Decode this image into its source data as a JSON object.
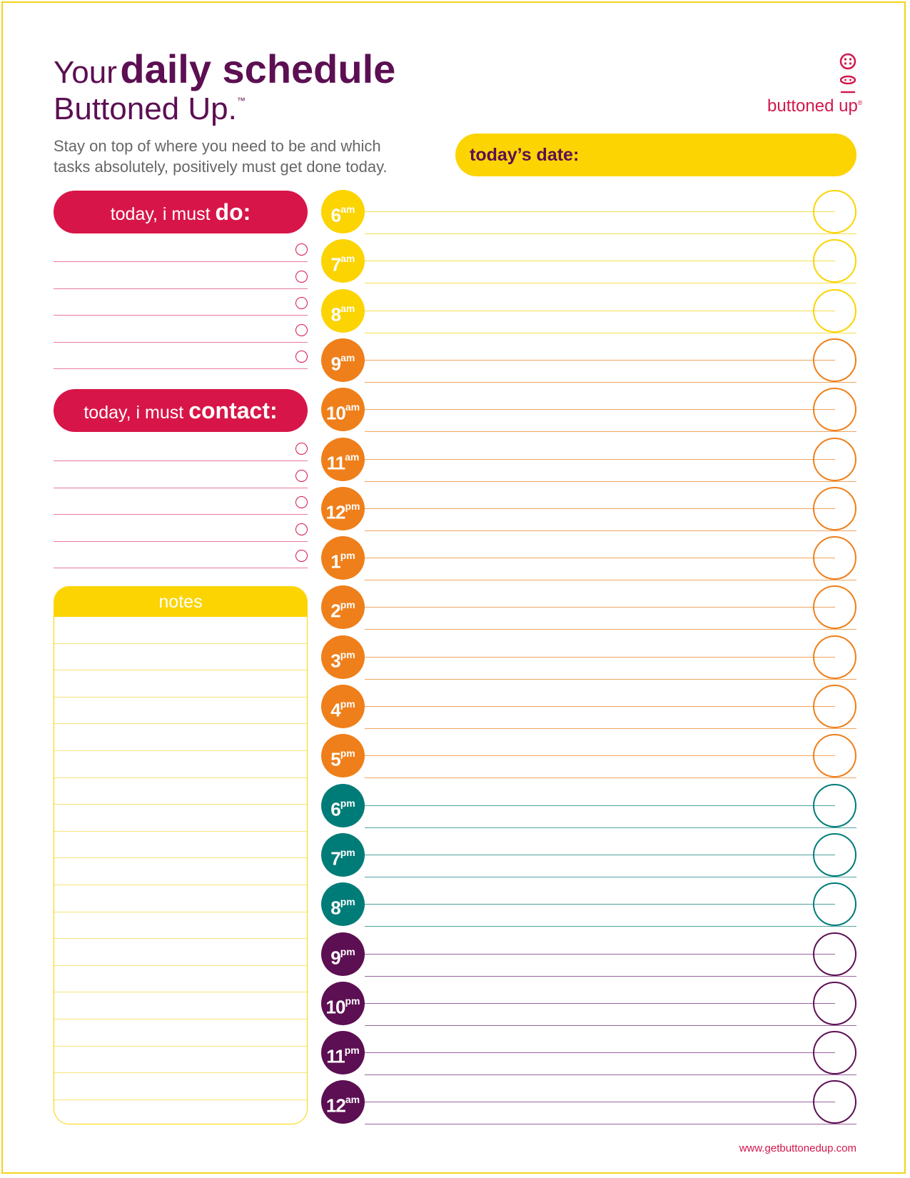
{
  "header": {
    "title_prefix": "Your",
    "title_main": "daily schedule",
    "subtitle": "Buttoned Up.",
    "trademark": "™",
    "description": "Stay on top of where you need to be and which tasks absolutely, positively must get done today.",
    "date_label": "today’s date:"
  },
  "brand": {
    "name": "buttoned up",
    "registered": "®",
    "url": "www.getbuttonedup.com",
    "color": "#d2184c"
  },
  "sections": {
    "do_prefix": "today, i must",
    "do_label": "do:",
    "contact_prefix": "today, i must",
    "contact_label": "contact:",
    "notes_label": "notes"
  },
  "colors": {
    "yellow": "#fbd402",
    "orange": "#ef7f1a",
    "teal": "#007c78",
    "purple": "#5c0f52",
    "red": "#d81548"
  },
  "hours": [
    {
      "num": "6",
      "suffix": "am",
      "color": "#fbd402",
      "line": "#f5de50"
    },
    {
      "num": "7",
      "suffix": "am",
      "color": "#fbd402",
      "line": "#f5de50"
    },
    {
      "num": "8",
      "suffix": "am",
      "color": "#fbd402",
      "line": "#f5de50"
    },
    {
      "num": "9",
      "suffix": "am",
      "color": "#ef7f1a",
      "line": "#f0a560"
    },
    {
      "num": "10",
      "suffix": "am",
      "color": "#ef7f1a",
      "line": "#f0a560"
    },
    {
      "num": "11",
      "suffix": "am",
      "color": "#ef7f1a",
      "line": "#f0a560"
    },
    {
      "num": "12",
      "suffix": "pm",
      "color": "#ef7f1a",
      "line": "#f0a560"
    },
    {
      "num": "1",
      "suffix": "pm",
      "color": "#ef7f1a",
      "line": "#f0a560"
    },
    {
      "num": "2",
      "suffix": "pm",
      "color": "#ef7f1a",
      "line": "#f0a560"
    },
    {
      "num": "3",
      "suffix": "pm",
      "color": "#ef7f1a",
      "line": "#f0a560"
    },
    {
      "num": "4",
      "suffix": "pm",
      "color": "#ef7f1a",
      "line": "#f0a560"
    },
    {
      "num": "5",
      "suffix": "pm",
      "color": "#ef7f1a",
      "line": "#f0a560"
    },
    {
      "num": "6",
      "suffix": "pm",
      "color": "#007c78",
      "line": "#4fa3a0"
    },
    {
      "num": "7",
      "suffix": "pm",
      "color": "#007c78",
      "line": "#4fa3a0"
    },
    {
      "num": "8",
      "suffix": "pm",
      "color": "#007c78",
      "line": "#4fa3a0"
    },
    {
      "num": "9",
      "suffix": "pm",
      "color": "#5c0f52",
      "line": "#9a64a0"
    },
    {
      "num": "10",
      "suffix": "pm",
      "color": "#5c0f52",
      "line": "#9a64a0"
    },
    {
      "num": "11",
      "suffix": "pm",
      "color": "#5c0f52",
      "line": "#9a64a0"
    },
    {
      "num": "12",
      "suffix": "am",
      "color": "#5c0f52",
      "line": "#9a64a0"
    }
  ]
}
